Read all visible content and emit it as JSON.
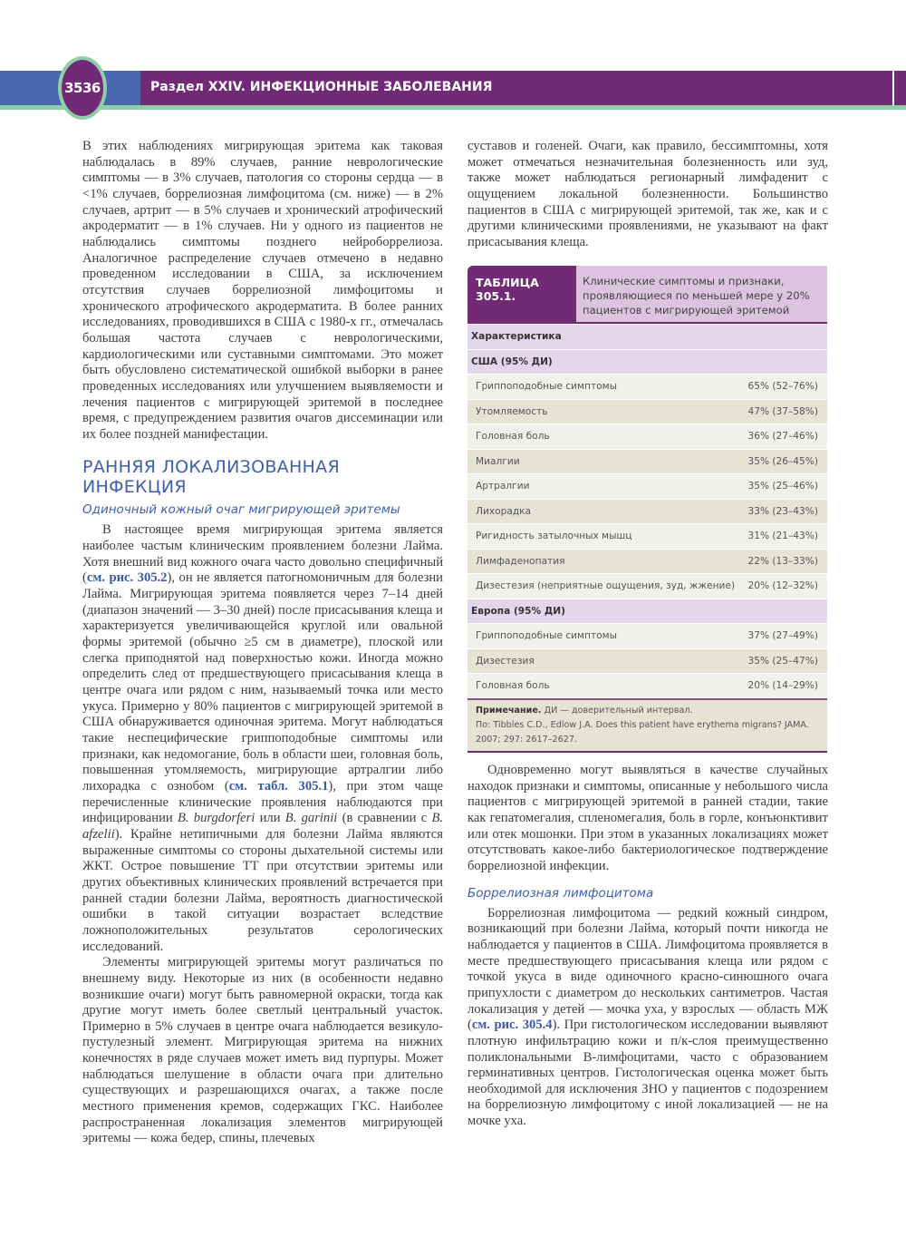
{
  "header": {
    "page_number": "3536",
    "section": "Раздел XXIV.  ИНФЕКЦИОННЫЕ ЗАБОЛЕВАНИЯ",
    "colors": {
      "blue": "#4a68b0",
      "purple": "#722a77",
      "green": "#8fcfa8"
    }
  },
  "left": {
    "p1": "В этих наблюдениях мигрирующая эритема как таковая наблюдалась в 89% случаев, ранние неврологические симптомы — в 3% случаев, патология со стороны сердца — в <1% случаев, боррелиозная лимфоцитома (см. ниже) — в 2% случаев, артрит — в 5% случаев и хронический атрофический акродерматит — в 1% случаев. Ни у одного из пациентов не наблюдались симптомы позднего нейроборрелиоза. Аналогичное распределение случаев отмечено в недавно проведенном исследовании в США, за исключением отсутствия случаев боррелиозной лимфоцитомы и хронического атрофического акродерматита. В более ранних исследованиях, проводившихся в США с 1980-х гг., отмечалась большая частота случаев с неврологическими, кардиологическими или суставными симптомами. Это может быть обусловлено систематической ошибкой выборки в ранее проведенных исследованиях или улучшением выявляемости и лечения пациентов с мигрирующей эритемой в последнее время, с предупреждением развития очагов диссеминации или их более поздней манифестации.",
    "heading": "РАННЯЯ ЛОКАЛИЗОВАННАЯ ИНФЕКЦИЯ",
    "subheading": "Одиночный кожный очаг мигрирующей эритемы",
    "p2": {
      "s1": "В настоящее время мигрирующая эритема является наиболее частым клиническим проявлением болезни Лайма. Хотя внешний вид кожного очага часто довольно специфичный (",
      "ref1": "см. рис. 305.2",
      "s2": "), он не является патогномоничным для болезни Лайма. Мигрирующая эритема появляется через 7–14 дней (диапазон значений — 3–30 дней) после присасывания клеща и характеризуется увеличивающейся круглой или овальной формы эритемой (обычно ≥5 см в диаметре), плоской или слегка приподнятой над поверхностью кожи. Иногда можно определить след от предшествующего присасывания клеща в центре очага или рядом с ним, называемый точка или место укуса. Примерно у 80% пациентов с мигрирующей эритемой в США обнаруживается одиночная эритема. Могут наблюдаться такие неспецифические гриппоподобные симптомы или признаки, как недомогание, боль в области шеи, головная боль, повышенная утомляемость, мигрирующие артралгии либо лихорадка с ознобом (",
      "ref2": "см. табл. 305.1",
      "s3": "), при этом чаще перечисленные клинические проявления наблюдаются при инфицировании ",
      "i1": "B. burgdorferi",
      "s4": " или ",
      "i2": "B. garinii",
      "s5": " (в сравнении с ",
      "i3": "B. afzelii",
      "s6": "). Крайне нетипичными для болезни Лайма являются выраженные симптомы со стороны дыхательной системы или ЖКТ. Острое повышение ТТ при отсутствии эритемы или других объективных клинических проявлений встречается при ранней стадии болезни Лайма, вероятность диагностической ошибки в такой ситуации возрастает вследствие ложноположительных результатов серологических исследований."
    },
    "p3": "Элементы мигрирующей эритемы могут различаться по внешнему виду. Некоторые из них (в особенности недавно возникшие очаги) могут быть равномерной окраски, тогда как другие могут иметь более светлый центральный участок. Примерно в 5% случаев в центре очага наблюдается везикуло-пустулезный элемент. Мигрирующая эритема на нижних конечностях в ряде случаев может иметь вид пурпуры. Может наблюдаться шелушение в области очага при длительно существующих и разрешающихся очагах, а также после местного применения кремов, содержащих ГКС. Наиболее распространенная локализация элементов мигрирующей эритемы — кожа бедер, спины, плечевых"
  },
  "right": {
    "p1": "суставов и голеней. Очаги, как правило, бессимптомны, хотя может отмечаться незначительная болезненность или зуд, также может наблюдаться регионарный лимфаденит с ощущением локальной болезненности. Большинство пациентов в США с мигрирующей эритемой, так же, как и с другими клиническими проявлениями, не указывают на факт присасывания клеща.",
    "table": {
      "label": "ТАБЛИЦА 305.1.",
      "caption": "Клинические симптомы и признаки, проявляющиеся по меньшей мере у 20% пациентов с мигрирующей эритемой",
      "column_header": "Характеристика",
      "groups": [
        {
          "title": "США (95% ДИ)",
          "rows": [
            {
              "name": "Гриппоподобные симптомы",
              "value": "65% (52–76%)"
            },
            {
              "name": "Утомляемость",
              "value": "47% (37–58%)"
            },
            {
              "name": "Головная боль",
              "value": "36% (27–46%)"
            },
            {
              "name": "Миалгии",
              "value": "35% (26–45%)"
            },
            {
              "name": "Артралгии",
              "value": "35% (25–46%)"
            },
            {
              "name": "Лихорадка",
              "value": "33% (23–43%)"
            },
            {
              "name": "Ригидность затылочных мышц",
              "value": "31% (21–43%)"
            },
            {
              "name": "Лимфаденопатия",
              "value": "22% (13–33%)"
            },
            {
              "name": "Дизестезия (неприятные ощущения, зуд, жжение)",
              "value": "20% (12–32%)"
            }
          ]
        },
        {
          "title": "Европа (95% ДИ)",
          "rows": [
            {
              "name": "Гриппоподобные симптомы",
              "value": "37% (27–49%)"
            },
            {
              "name": "Дизестезия",
              "value": "35% (25–47%)"
            },
            {
              "name": "Головная боль",
              "value": "20% (14–29%)"
            }
          ]
        }
      ],
      "note_label": "Примечание.",
      "note_text": " ДИ — доверительный интервал.",
      "source": "По: Tibbles C.D., Edlow J.A. Does this patient have erythema migrans? JAMA. 2007; 297: 2617–2627."
    },
    "p2": "Одновременно могут выявляться в качестве случайных находок признаки и симптомы, описанные у небольшого числа пациентов с мигрирующей эритемой в ранней стадии, такие как гепатомегалия, спленомегалия, боль в горле, конъюнктивит или отек мошонки. При этом в указанных локализациях может отсутствовать какое-либо бактериологическое подтверждение боррелиозной инфекции.",
    "subheading": "Боррелиозная лимфоцитома",
    "p3": {
      "s1": "Боррелиозная лимфоцитома — редкий кожный синдром, возникающий при болезни Лайма, который почти никогда не наблюдается у пациентов в США. Лимфоцитома проявляется в месте предшествующего присасывания клеща или рядом с точкой укуса в виде одиночного красно-синюшного очага припухлости с диаметром до нескольких сантиметров. Частая локализация у детей — мочка уха, у взрослых — область МЖ (",
      "ref": "см. рис. 305.4",
      "s2": "). При гистологическом исследовании выявляют плотную инфильтрацию кожи и п/к-слоя преимущественно поликлональными B-лимфоцитами, часто с образованием герминативных центров. Гистологическая оценка может быть необходимой для исключения ЗНО у пациентов с подозрением на боррелиозную лимфоцитому с иной локализацией — не на мочке уха."
    }
  }
}
